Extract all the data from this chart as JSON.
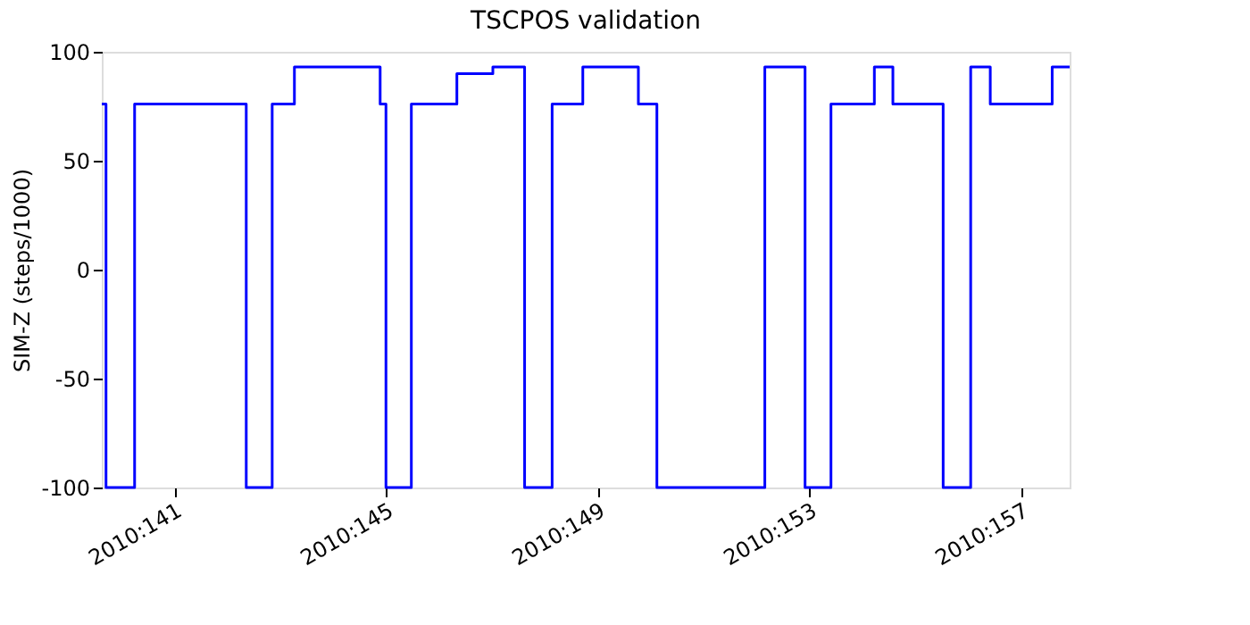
{
  "chart_data": {
    "type": "step",
    "title": "TSCPOS validation",
    "ylabel": "SIM-Z (steps/1000)",
    "x": [
      "2010-05-19T15:07",
      "2010-05-19T17:02",
      "2010-05-20T06:00",
      "2010-05-22T08:38",
      "2010-05-22T20:24",
      "2010-05-23T06:29",
      "2010-05-24T21:22",
      "2010-05-25T00:00",
      "2010-05-25T11:31",
      "2010-05-26T08:10",
      "2010-05-27T00:29",
      "2010-05-27T14:53",
      "2010-05-28T03:22",
      "2010-05-28T17:17",
      "2010-05-29T18:29",
      "2010-05-30T02:53",
      "2010-06-01T03:50",
      "2010-06-01T22:05",
      "2010-06-02T09:50",
      "2010-06-03T05:31",
      "2010-06-03T13:55",
      "2010-06-04T12:43",
      "2010-06-05T01:12",
      "2010-06-05T10:05",
      "2010-06-06T14:10",
      "2010-06-06T22:05"
    ],
    "series": [
      {
        "color": "#0000ff",
        "values": [
          76,
          -100,
          76,
          -100,
          76,
          93,
          76,
          -100,
          76,
          90,
          93,
          -100,
          76,
          93,
          76,
          -100,
          93,
          -100,
          76,
          93,
          76,
          -100,
          93,
          76,
          93,
          93
        ]
      }
    ],
    "xlim": [
      "2010-05-19T15:07",
      "2010-06-06T22:05"
    ],
    "xticks": [
      {
        "value": "2010-05-21",
        "label": "2010:141"
      },
      {
        "value": "2010-05-25",
        "label": "2010:145"
      },
      {
        "value": "2010-05-29",
        "label": "2010:149"
      },
      {
        "value": "2010-06-02",
        "label": "2010:153"
      },
      {
        "value": "2010-06-06",
        "label": "2010:157"
      }
    ],
    "ylim": [
      -100,
      100
    ],
    "yticks": [
      -100,
      -50,
      0,
      50,
      100
    ],
    "grid": false,
    "legend": false,
    "marker": "none",
    "line_style": "solid"
  }
}
